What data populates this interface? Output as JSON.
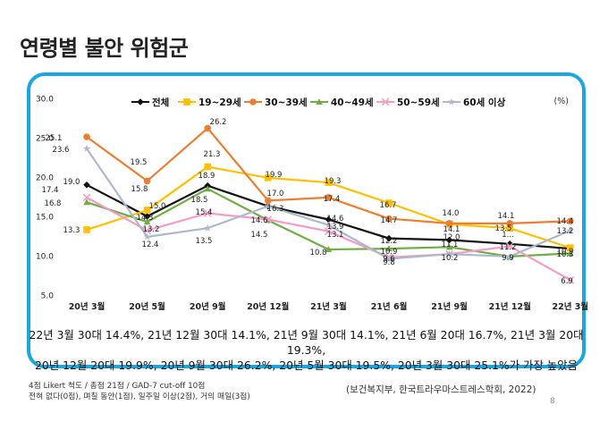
{
  "slide": {
    "title": "연령별 불안 위험군",
    "summary_line1": "22년 3월 30대 14.4%, 21년 12월 30대 14.1%, 21년 9월 30대 14.1%, 21년 6월 20대 16.7%, 21년 3월 20대 19.3%,",
    "summary_line2": "20년 12월 20대 19.9%, 20년 9월 30대 26.2%, 20년 5월 30대 19.5%, 20년 3월 30대 25.1%가 가장 높았음",
    "footnote_line1": "4점 Likert 척도 / 총점 21점 / GAD-7 cut-off 10점",
    "footnote_line2": "전혀 없다(0점), 며칠 동안(1점), 일주일 이상(2점), 거의 매일(3점)",
    "source": "(보건복지부, 한국트라우마스트레스학회, 2022)",
    "page_number": "8"
  },
  "chart_data": {
    "type": "line",
    "unit_label": "(%)",
    "categories": [
      "20년 3월",
      "20년 5월",
      "20년 9월",
      "20년 12월",
      "21년 3월",
      "21년 6월",
      "21년 9월",
      "21년 12월",
      "22년 3월"
    ],
    "ylim": [
      5,
      30
    ],
    "y_ticks": [
      "30.0",
      "25.0",
      "20.0",
      "15.0",
      "10.0",
      "5.0"
    ],
    "grid": false,
    "legend_position": "top",
    "series": [
      {
        "name": "전체",
        "color": "#111111",
        "marker": "diamond",
        "values": [
          19.0,
          15.0,
          18.9,
          16.3,
          14.6,
          12.2,
          12.0,
          11.5,
          10.9
        ]
      },
      {
        "name": "19~29세",
        "color": "#ffc000",
        "marker": "square",
        "values": [
          13.3,
          15.8,
          21.3,
          19.9,
          19.3,
          16.7,
          14.0,
          13.5,
          11.0
        ]
      },
      {
        "name": "30~39세",
        "color": "#ed7d31",
        "marker": "circle",
        "values": [
          25.1,
          19.5,
          26.2,
          17.0,
          17.4,
          14.7,
          14.1,
          14.1,
          14.4
        ]
      },
      {
        "name": "40~49세",
        "color": "#70ad47",
        "marker": "triangle",
        "values": [
          16.8,
          14.3,
          18.5,
          14.5,
          10.8,
          10.9,
          11.1,
          9.9,
          10.3
        ]
      },
      {
        "name": "50~59세",
        "color": "#f49bc6",
        "marker": "x",
        "values": [
          17.4,
          13.2,
          15.4,
          14.6,
          13.1,
          9.8,
          10.2,
          11.2,
          6.9
        ]
      },
      {
        "name": "60세 이상",
        "color": "#adb9ca",
        "marker": "star",
        "values": [
          23.6,
          12.4,
          13.5,
          16.3,
          13.9,
          9.6,
          10.2,
          9.9,
          13.2
        ]
      }
    ],
    "data_labels": [
      {
        "text": "19.0"
      },
      {
        "text": "17.4"
      },
      {
        "text": "16.8"
      },
      {
        "text": "25.1"
      },
      {
        "text": "23.6"
      },
      {
        "text": "13.3"
      },
      {
        "text": "19.5"
      },
      {
        "text": "15.8"
      },
      {
        "text": "15.0"
      },
      {
        "text": "14.3"
      },
      {
        "text": "13.2"
      },
      {
        "text": "12.4"
      },
      {
        "text": "26.2"
      },
      {
        "text": "21.3"
      },
      {
        "text": "18.9"
      },
      {
        "text": "18.5"
      },
      {
        "text": "15.4"
      },
      {
        "text": "13.5"
      },
      {
        "text": "19.9"
      },
      {
        "text": "17.0"
      },
      {
        "text": "16.3"
      },
      {
        "text": "14.6"
      },
      {
        "text": "14.5"
      },
      {
        "text": "19.3"
      },
      {
        "text": "17.4"
      },
      {
        "text": "14.6"
      },
      {
        "text": "13.9"
      },
      {
        "text": "13.1"
      },
      {
        "text": "10.8"
      },
      {
        "text": "16.7"
      },
      {
        "text": "14.7"
      },
      {
        "text": "12.2"
      },
      {
        "text": "10.9"
      },
      {
        "text": "9.8"
      },
      {
        "text": "9.6"
      },
      {
        "text": "14.0"
      },
      {
        "text": "14.1"
      },
      {
        "text": "12.0"
      },
      {
        "text": "11.1"
      },
      {
        "text": "10.2"
      },
      {
        "text": "14.1"
      },
      {
        "text": "13.5"
      },
      {
        "text": "11.2"
      },
      {
        "text": "1..."
      },
      {
        "text": "9.9"
      },
      {
        "text": "14.4"
      },
      {
        "text": "13.2"
      },
      {
        "text": "10.9"
      },
      {
        "text": "10.3"
      },
      {
        "text": "6.9"
      }
    ]
  }
}
